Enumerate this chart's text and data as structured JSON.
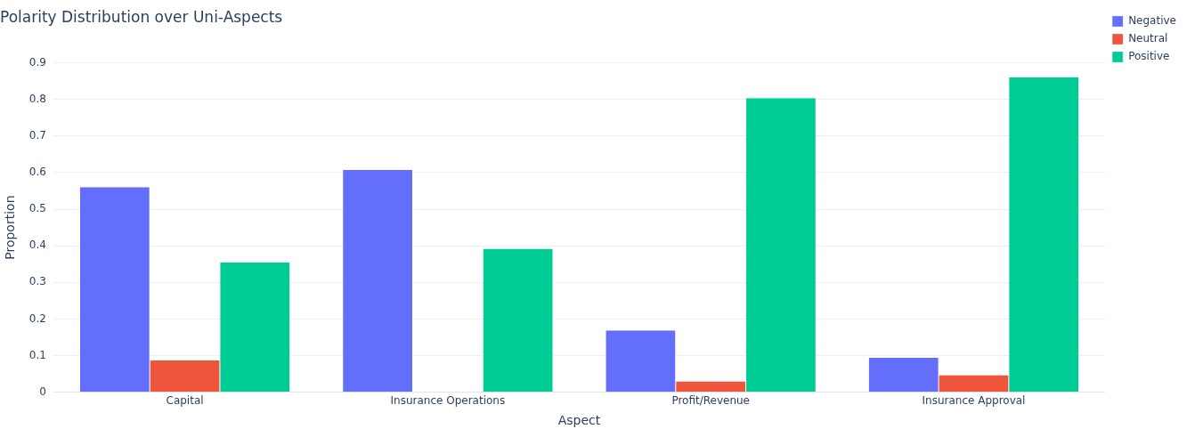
{
  "chart_data": {
    "type": "bar",
    "title": "Polarity Distribution over Uni-Aspects",
    "xlabel": "Aspect",
    "ylabel": "Proportion",
    "categories": [
      "Capital",
      "Insurance Operations",
      "Profit/Revenue",
      "Insurance Approval"
    ],
    "series": [
      {
        "name": "Negative",
        "color": "#636efa",
        "values": [
          0.56,
          0.607,
          0.169,
          0.094
        ]
      },
      {
        "name": "Neutral",
        "color": "#ef553b",
        "values": [
          0.087,
          0,
          0.03,
          0.047
        ]
      },
      {
        "name": "Positive",
        "color": "#00cc96",
        "values": [
          0.355,
          0.392,
          0.803,
          0.86
        ]
      }
    ],
    "ylim": [
      0,
      0.9
    ],
    "yticks": [
      0,
      0.1,
      0.2,
      0.3,
      0.4,
      0.5,
      0.6,
      0.7,
      0.8,
      0.9
    ],
    "grid": "y",
    "legend": "top right"
  }
}
